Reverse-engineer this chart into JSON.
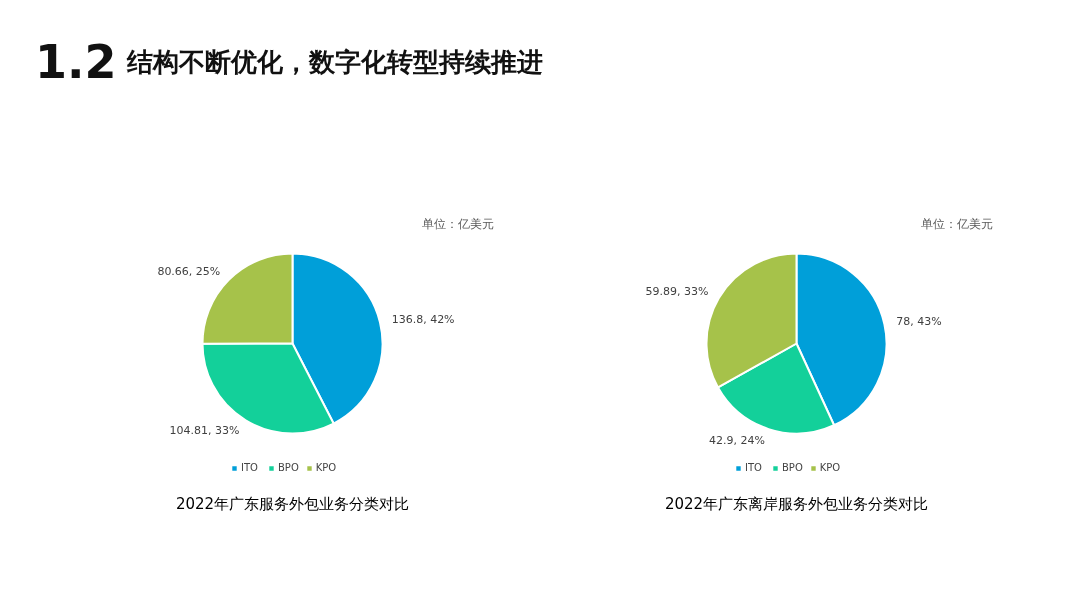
{
  "chart_data": [
    {
      "type": "pie",
      "title": "2022年广东服务外包业务分类对比",
      "categories": [
        "ITO",
        "BPO",
        "KPO"
      ],
      "values": [
        136.8,
        104.81,
        80.66
      ],
      "colors": [
        "#009fd9",
        "#13d09a",
        "#a6c24a"
      ],
      "value_labels": [
        "136.8, 42%",
        "104.81, 33%",
        "80.66, 25%"
      ],
      "legend": "bottom",
      "annotations": [
        "1.2",
        "结构不断优化，数字化转型持续推进",
        "单位：亿美元"
      ]
    },
    {
      "type": "pie",
      "title": "2022年广东离岸服务外包业务分类对比",
      "categories": [
        "ITO",
        "BPO",
        "KPO"
      ],
      "values": [
        78,
        42.9,
        59.89
      ],
      "colors": [
        "#009fd9",
        "#13d09a",
        "#a6c24a"
      ],
      "value_labels": [
        "78, 43%",
        "42.9, 24%",
        "59.89, 33%"
      ],
      "legend": "bottom",
      "annotations": [
        "单位：亿美元"
      ]
    }
  ]
}
